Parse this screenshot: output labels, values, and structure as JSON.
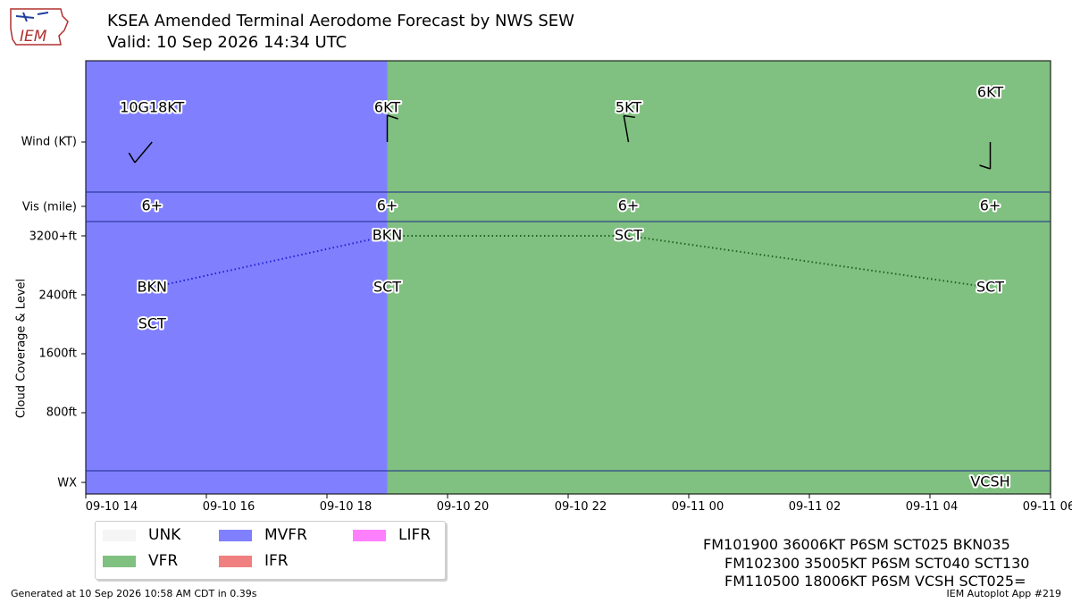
{
  "header": {
    "title_line1": "KSEA Amended Terminal Aerodome Forecast by NWS SEW",
    "title_line2": "Valid: 10 Sep 2026 14:34 UTC",
    "logo_text": "IEM"
  },
  "axes": {
    "wind_label": "Wind (KT)",
    "vis_label": "Vis (mile)",
    "cloud_label": "Cloud Coverage & Level",
    "wx_label": "WX",
    "cloud_ticks": [
      "3200+ft",
      "2400ft",
      "1600ft",
      "800ft"
    ],
    "x_ticks": [
      "09-10 14",
      "09-10 16",
      "09-10 18",
      "09-10 20",
      "09-10 22",
      "09-11 00",
      "09-11 02",
      "09-11 04",
      "09-11 06"
    ]
  },
  "chart_data": {
    "type": "timeline",
    "x_start_hour": 14,
    "x_end_hour": 30,
    "cloud_ylim": [
      0,
      3200
    ],
    "categories": [
      {
        "name": "UNK",
        "color": "#f5f5f5"
      },
      {
        "name": "VFR",
        "color": "#80c080"
      },
      {
        "name": "MVFR",
        "color": "#8080ff"
      },
      {
        "name": "IFR",
        "color": "#f08080"
      },
      {
        "name": "LIFR",
        "color": "#ff80ff"
      }
    ],
    "background": [
      {
        "from": 14,
        "to": 19,
        "category": "MVFR"
      },
      {
        "from": 19,
        "to": 30,
        "category": "VFR"
      }
    ],
    "forecasts": [
      {
        "time": 15.1,
        "wind_dir": 220,
        "wind_label": "10G18KT",
        "vis_label": "6+",
        "clouds": [
          {
            "cover": "SCT",
            "level": 2000
          },
          {
            "cover": "BKN",
            "level": 2500
          }
        ]
      },
      {
        "time": 19.0,
        "wind_dir": 360,
        "wind_label": "6KT",
        "vis_label": "6+",
        "clouds": [
          {
            "cover": "SCT",
            "level": 2500
          },
          {
            "cover": "BKN",
            "level": 3200
          }
        ]
      },
      {
        "time": 23.0,
        "wind_dir": 350,
        "wind_label": "5KT",
        "vis_label": "6+",
        "clouds": [
          {
            "cover": "SCT",
            "level": 3200
          }
        ]
      },
      {
        "time": 29.0,
        "wind_dir": 180,
        "wind_label": "6KT",
        "vis_label": "6+",
        "wx": "VCSH",
        "clouds": [
          {
            "cover": "SCT",
            "level": 2500
          }
        ]
      }
    ],
    "ceiling_lines": [
      {
        "color": "#2020d0",
        "points": [
          [
            15.1,
            2500
          ],
          [
            19.0,
            3200
          ]
        ]
      },
      {
        "color": "#206020",
        "points": [
          [
            19.0,
            3200
          ],
          [
            23.0,
            3200
          ],
          [
            29.0,
            2500
          ]
        ]
      }
    ]
  },
  "raw_taf": [
    "FM101900 36006KT P6SM SCT025 BKN035",
    "FM102300 35005KT P6SM SCT040 SCT130",
    "FM110500 18006KT P6SM VCSH SCT025="
  ],
  "footer": {
    "generated": "Generated at 10 Sep 2026 10:58 AM CDT in 0.39s",
    "app": "IEM Autoplot App #219"
  }
}
